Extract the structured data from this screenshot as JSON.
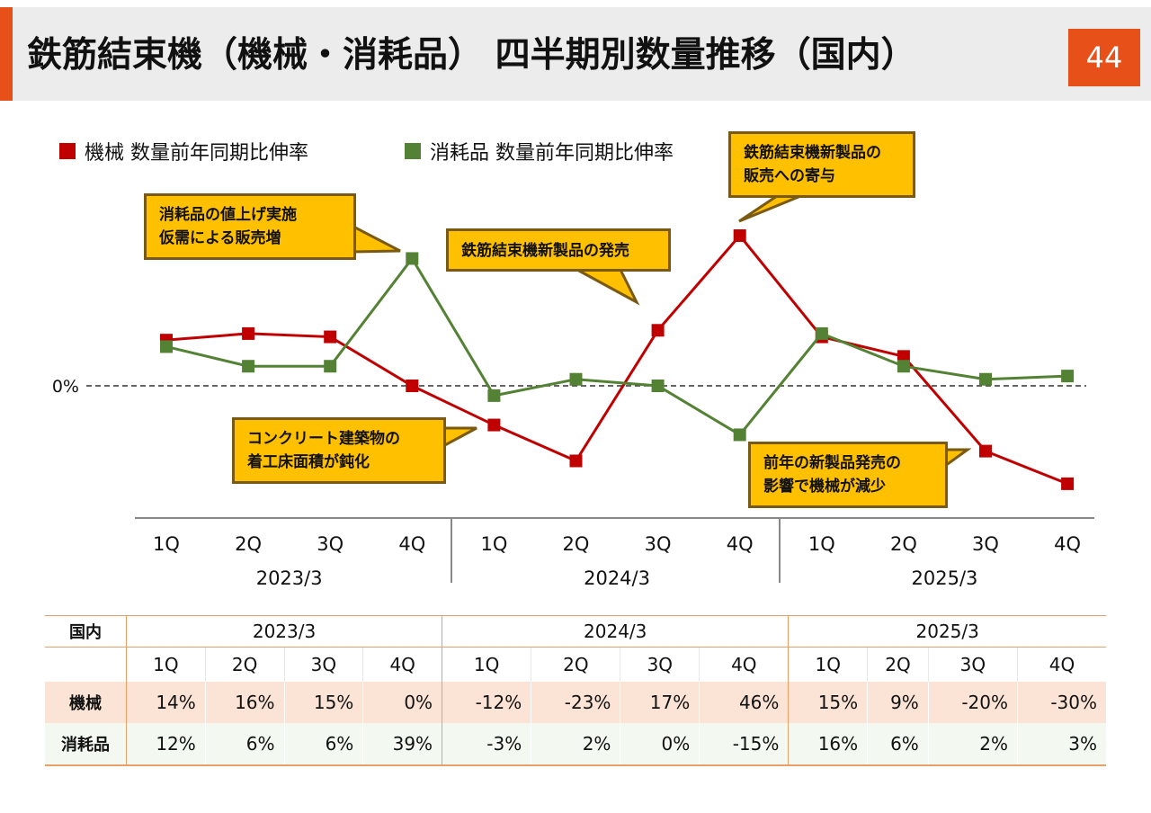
{
  "page": {
    "title": "鉄筋結束機（機械・消耗品） 四半期別数量推移（国内）",
    "page_number": "44",
    "accent_color": "#e8501a"
  },
  "legend": [
    {
      "label": "機械 数量前年同期比伸率",
      "color": "#c00000"
    },
    {
      "label": "消耗品 数量前年同期比伸率",
      "color": "#548235"
    }
  ],
  "callouts": {
    "consumables_price": [
      "消耗品の値上げ実施",
      "仮需による販売増"
    ],
    "new_product_launch": "鉄筋結束機新製品の発売",
    "new_product_contribution": [
      "鉄筋結束機新製品の",
      "販売への寄与"
    ],
    "construction_slowdown": [
      "コンクリート建築物の",
      "着工床面積が鈍化"
    ],
    "prior_year_effect": [
      "前年の新製品発売の",
      "影響で機械が減少"
    ]
  },
  "chart_data": {
    "type": "line",
    "categories": [
      "1Q",
      "2Q",
      "3Q",
      "4Q",
      "1Q",
      "2Q",
      "3Q",
      "4Q",
      "1Q",
      "2Q",
      "3Q",
      "4Q"
    ],
    "groups": [
      "2023/3",
      "2024/3",
      "2025/3"
    ],
    "zero_label": "0%",
    "ylim": [
      -45,
      55
    ],
    "series": [
      {
        "name": "機械 数量前年同期比伸率",
        "color": "#c00000",
        "marker": "square",
        "values": [
          14,
          16,
          15,
          0,
          -12,
          -23,
          17,
          46,
          15,
          9,
          -20,
          -30
        ]
      },
      {
        "name": "消耗品 数量前年同期比伸率",
        "color": "#548235",
        "marker": "square",
        "values": [
          12,
          6,
          6,
          39,
          -3,
          2,
          0,
          -15,
          16,
          6,
          2,
          3
        ]
      }
    ]
  },
  "table": {
    "corner_label": "国内",
    "years": [
      "2023/3",
      "2024/3",
      "2025/3"
    ],
    "quarters": [
      "1Q",
      "2Q",
      "3Q",
      "4Q",
      "1Q",
      "2Q",
      "3Q",
      "4Q",
      "1Q",
      "2Q",
      "3Q",
      "4Q"
    ],
    "rows": [
      {
        "label": "機械",
        "values": [
          "14%",
          "16%",
          "15%",
          "0%",
          "-12%",
          "-23%",
          "17%",
          "46%",
          "15%",
          "9%",
          "-20%",
          "-30%"
        ]
      },
      {
        "label": "消耗品",
        "values": [
          "12%",
          "6%",
          "6%",
          "39%",
          "-3%",
          "2%",
          "0%",
          "-15%",
          "16%",
          "6%",
          "2%",
          "3%"
        ]
      }
    ]
  }
}
